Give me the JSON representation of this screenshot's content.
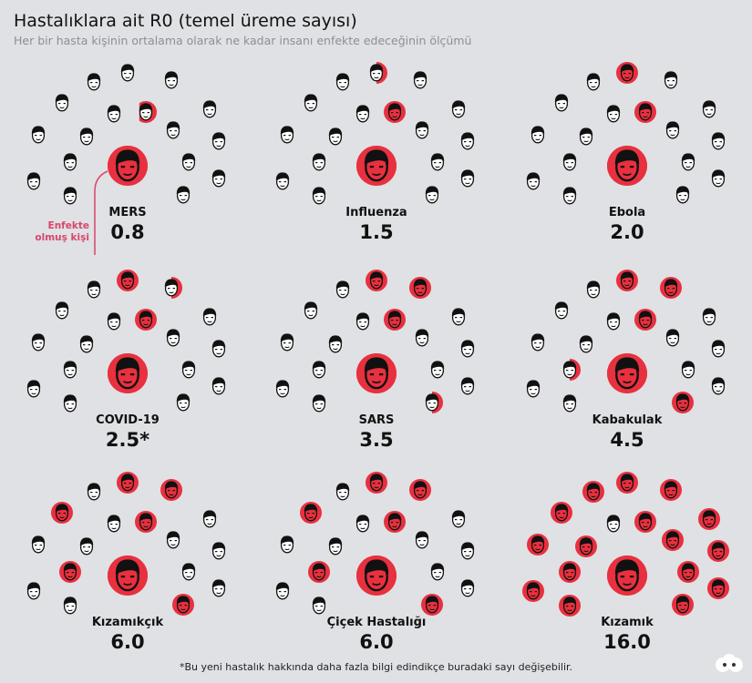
{
  "title": "Hastalıklara ait R0 (temel üreme sayısı)",
  "subtitle": "Her bir hasta kişinin ortalama olarak ne kadar insanı enfekte edeceğinin ölçümü",
  "annotation": "Enfekte olmuş kişi",
  "footnote": "*Bu yeni hastalık hakkında daha fazla bilgi edindikçe buradaki sayı değişebilir.",
  "colors": {
    "infected": "#e8303f",
    "background": "#dfe1e4",
    "annotation": "#d9466b"
  },
  "panels": [
    {
      "name": "MERS",
      "value": "0.8",
      "r0": 0.8
    },
    {
      "name": "Influenza",
      "value": "1.5",
      "r0": 1.5
    },
    {
      "name": "Ebola",
      "value": "2.0",
      "r0": 2.0
    },
    {
      "name": "COVID-19",
      "value": "2.5*",
      "r0": 2.5
    },
    {
      "name": "SARS",
      "value": "3.5",
      "r0": 3.5
    },
    {
      "name": "Kabakulak",
      "value": "4.5",
      "r0": 4.5
    },
    {
      "name": "Kızamıkçık",
      "value": "6.0",
      "r0": 6.0
    },
    {
      "name": "Çiçek Hastalığı",
      "value": "6.0",
      "r0": 6.0
    },
    {
      "name": "Kızamık",
      "value": "16.0",
      "r0": 16.0
    }
  ]
}
